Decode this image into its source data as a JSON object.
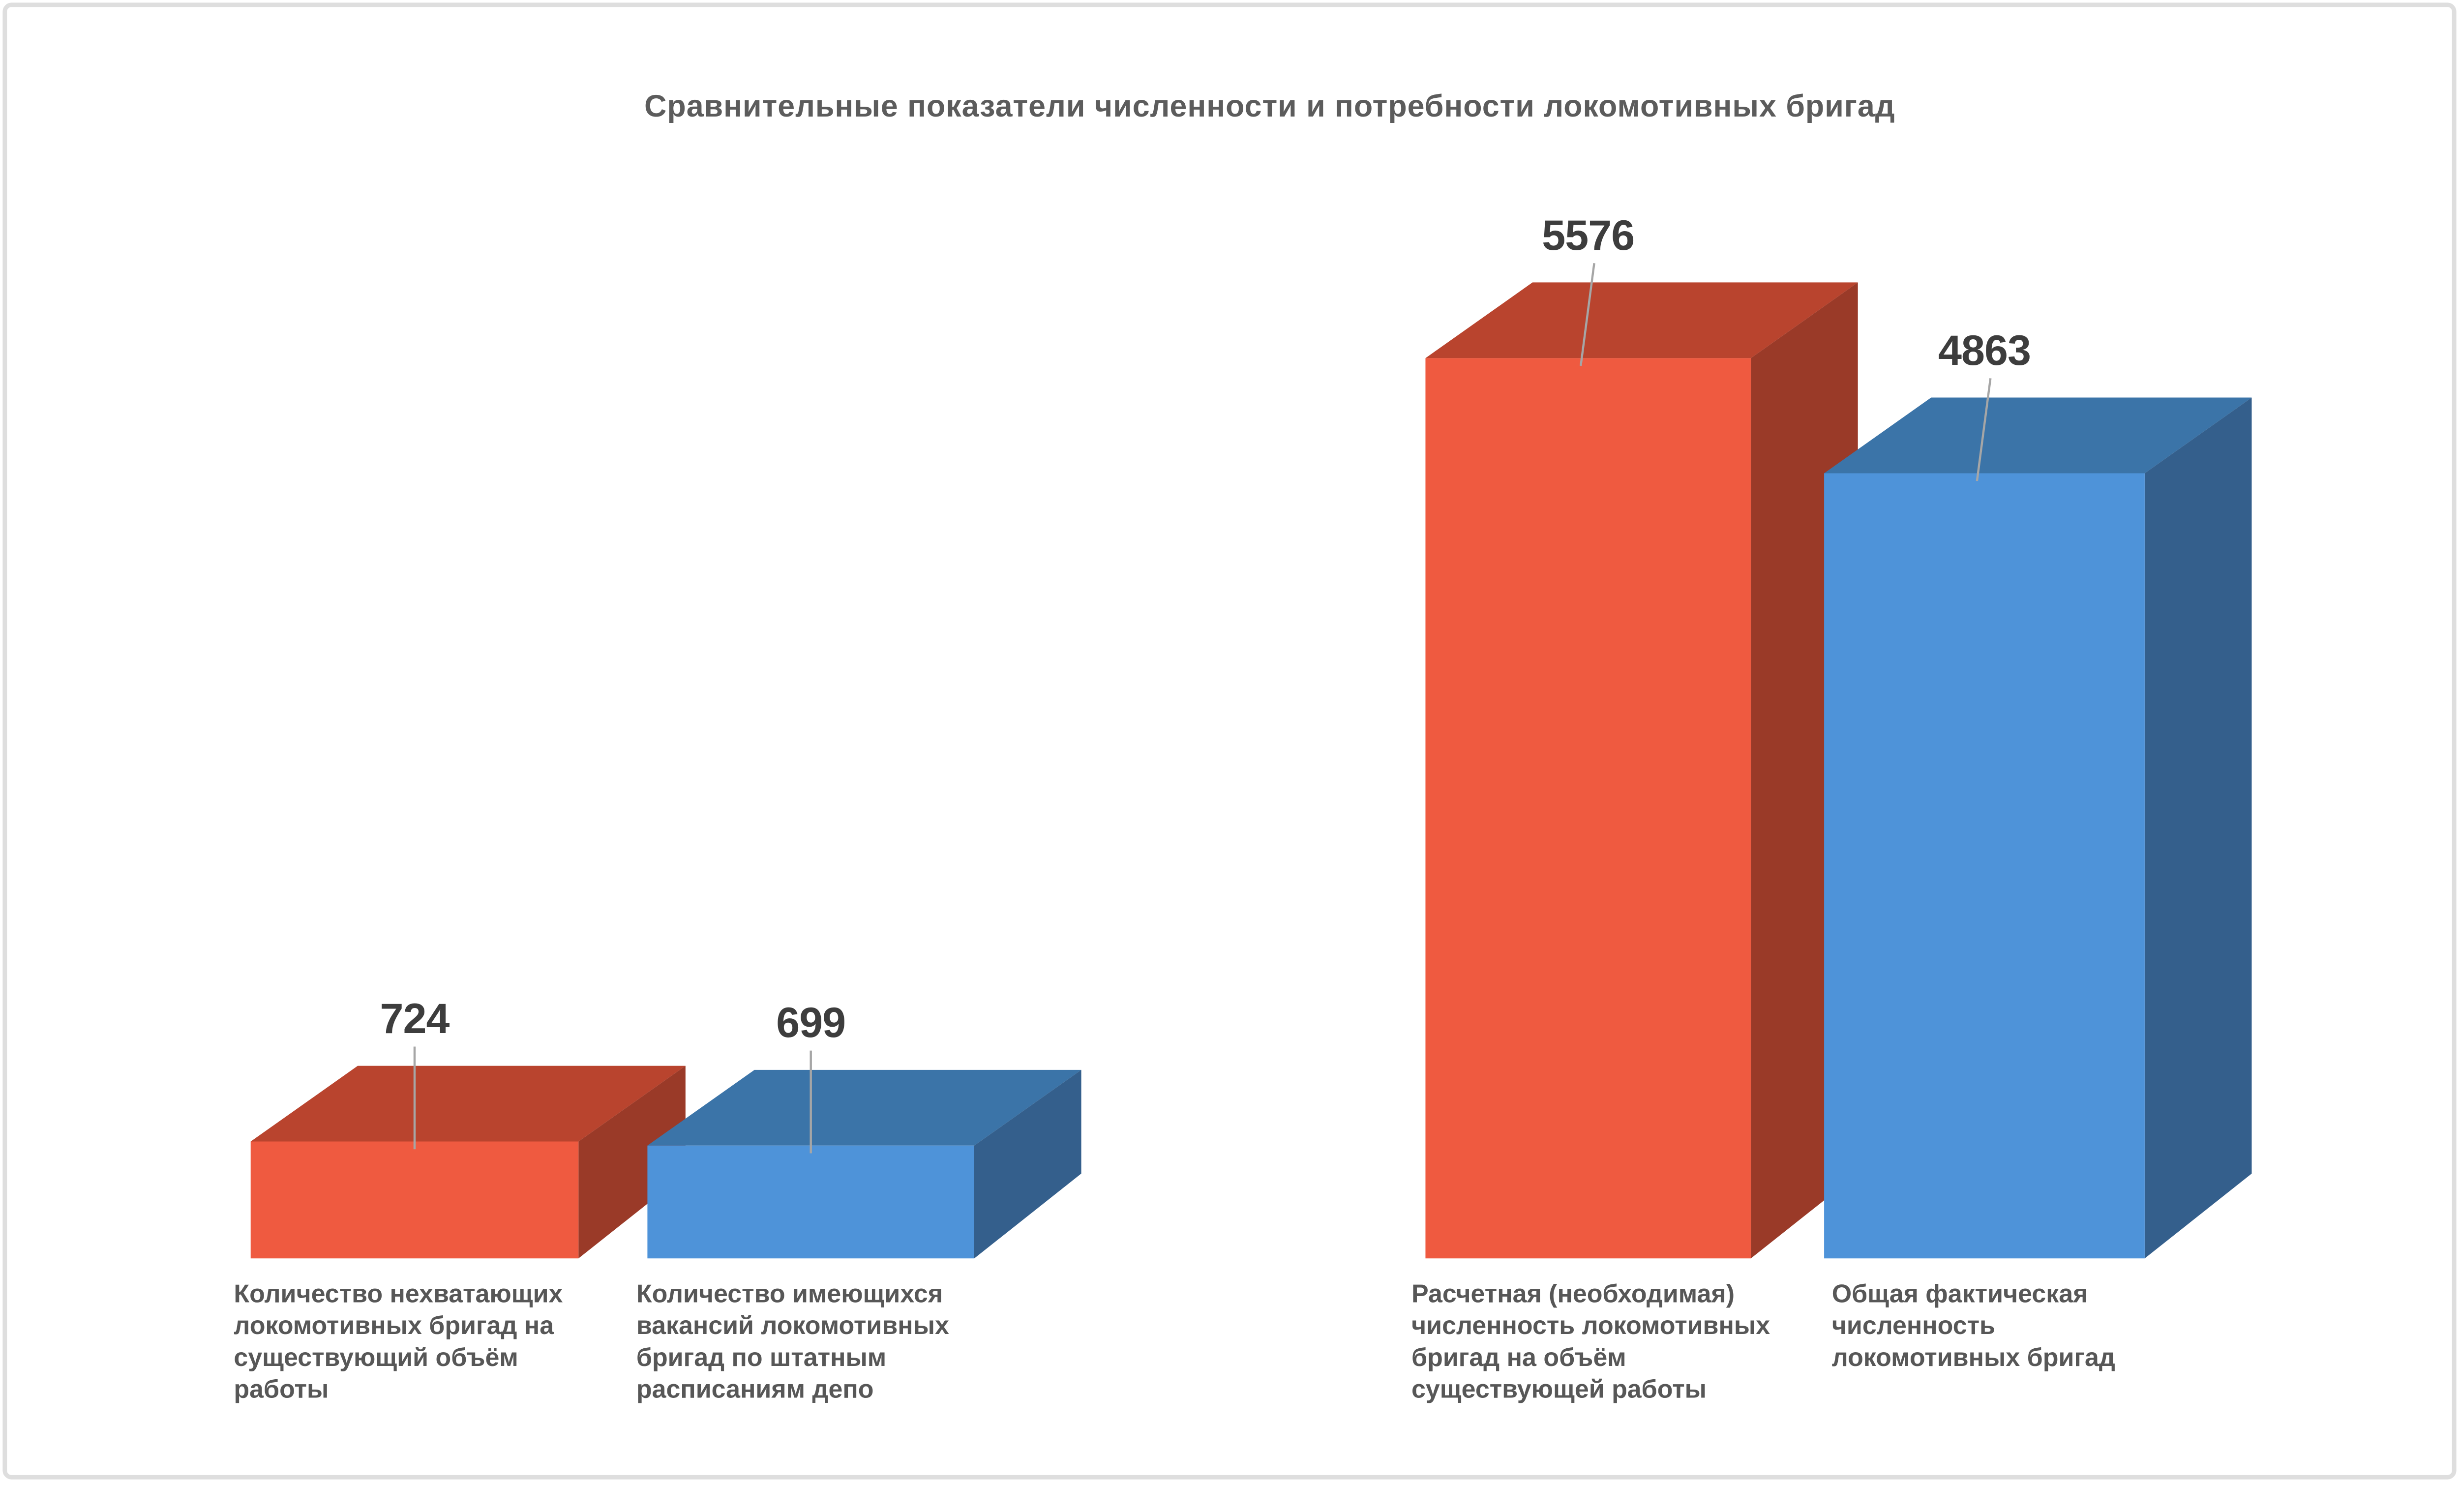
{
  "chart_data": {
    "type": "bar",
    "style": "3d-box",
    "title": "Сравнительные показатели численности и потребности локомотивных бригад",
    "legend": "none",
    "axes": "none",
    "grid": false,
    "categories": [
      "Количество нехватающих локомотивных бригад на существующий объём работы",
      "Количество имеющихся вакансий локомотивных бригад по штатным расписаниям депо",
      "Расчетная (необходимая) численность локомотивных бригад на объём существующей работы",
      "Общая фактическая численность локомотивных бригад"
    ],
    "values": [
      724,
      699,
      5576,
      4863
    ],
    "bars": [
      {
        "value": 724,
        "color_role": "red",
        "label_lines": [
          "Количество нехватающих",
          "локомотивных бригад на",
          "существующий объём",
          "работы"
        ]
      },
      {
        "value": 699,
        "color_role": "blue",
        "label_lines": [
          "Количество имеющихся",
          "вакансий локомотивных",
          "бригад по штатным",
          "расписаниям депо"
        ]
      },
      {
        "value": 5576,
        "color_role": "red",
        "label_lines": [
          "Расчетная (необходимая)",
          "численность локомотивных",
          "бригад на объём",
          "существующей работы"
        ]
      },
      {
        "value": 4863,
        "color_role": "blue",
        "label_lines": [
          "Общая фактическая",
          "численность",
          "локомотивных бригад"
        ]
      }
    ],
    "palette": {
      "red": {
        "front": "#EF5A40",
        "top": "#B9442E",
        "side": "#9A3A28"
      },
      "blue": {
        "front": "#4E93D9",
        "top": "#3B74A8",
        "side": "#345F8C"
      }
    },
    "colors": {
      "title": "#5C5C5C",
      "value_label": "#3D3D3D",
      "category_label": "#575757",
      "leader_line": "#A6A6A6",
      "background": "#FFFFFF",
      "card_border": "#DEDEDE"
    }
  }
}
